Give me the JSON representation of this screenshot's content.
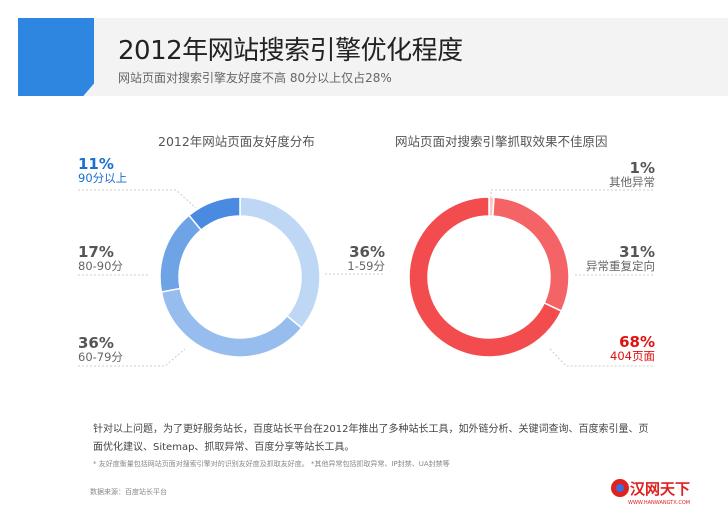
{
  "header": {
    "title": "2012年网站搜索引擎优化程度",
    "subtitle": "网站页面对搜索引擎友好度不高  80分以上仅占28%"
  },
  "chart_data": [
    {
      "type": "pie",
      "donut": true,
      "title": "2012年网站页面友好度分布",
      "slices": [
        {
          "label": "1-59分",
          "value": 36,
          "value_label": "36%",
          "color": "#bdd7f5"
        },
        {
          "label": "60-79分",
          "value": 36,
          "value_label": "36%",
          "color": "#97bdee"
        },
        {
          "label": "80-90分",
          "value": 17,
          "value_label": "17%",
          "color": "#6ea3e6"
        },
        {
          "label": "90分以上",
          "value": 11,
          "value_label": "11%",
          "color": "#4a8ae0"
        }
      ]
    },
    {
      "type": "pie",
      "donut": true,
      "title": "网站页面对搜索引擎抓取效果不佳原因",
      "slices": [
        {
          "label": "其他异常",
          "value": 1,
          "value_label": "1%",
          "color": "#f8c8c8"
        },
        {
          "label": "异常重复定向",
          "value": 31,
          "value_label": "31%",
          "color": "#f46466"
        },
        {
          "label": "404页面",
          "value": 68,
          "value_label": "68%",
          "color": "#f24c4e"
        }
      ]
    }
  ],
  "colors": {
    "highlight_blue": "#1a6fd1",
    "highlight_red": "#e01010"
  },
  "note": "针对以上问题，为了更好服务站长，百度站长平台在2012年推出了多种站长工具，如外链分析、关键词查询、百度索引量、页面优化建议、Sitemap、抓取异常、百度分享等站长工具。",
  "footnote": "* 友好度衡量包括网站页面对搜索引擎对的识别友好度及抓取友好度。 *其他异常包括抓取异常、IP封禁、UA封禁等",
  "source": "数据来源：百度站长平台",
  "logo": {
    "text": "汉网天下",
    "url_text": "WWW.HANWANGTX.COM"
  }
}
